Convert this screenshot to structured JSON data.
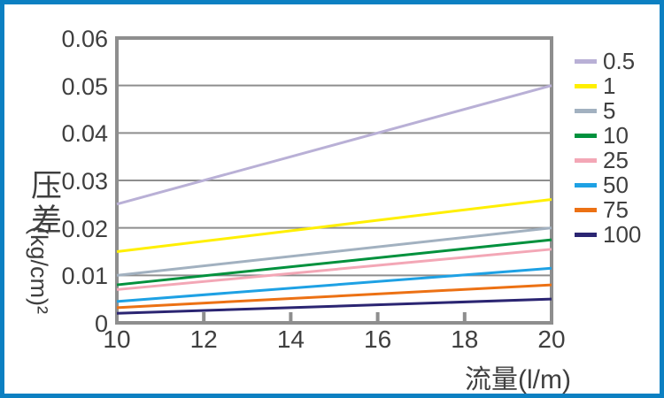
{
  "frame": {
    "border_color": "#0c80c2",
    "background": "#ffffff",
    "axis_color": "#8e8e8e",
    "text_color": "#3f3f3f"
  },
  "chart_data": {
    "type": "line",
    "title": "",
    "xlabel": "流量(l/m)",
    "ylabel": "压差 (kg/cm)²",
    "ylabel_cjk": "压差",
    "ylabel_unit": "(kg/cm)²",
    "xlim": [
      10,
      20
    ],
    "ylim": [
      0,
      0.06
    ],
    "x_ticks": [
      "10",
      "12",
      "14",
      "16",
      "18",
      "20"
    ],
    "y_ticks": [
      "0",
      "0.01",
      "0.02",
      "0.03",
      "0.04",
      "0.05",
      "0.06"
    ],
    "grid": "horizontal",
    "legend_position": "right",
    "x": [
      10,
      20
    ],
    "series": [
      {
        "name": "0.5",
        "color": "#b9b0d6",
        "values": [
          0.025,
          0.05
        ]
      },
      {
        "name": "1",
        "color": "#ffef00",
        "values": [
          0.015,
          0.026
        ]
      },
      {
        "name": "5",
        "color": "#a2b1c0",
        "values": [
          0.01,
          0.02
        ]
      },
      {
        "name": "10",
        "color": "#00913d",
        "values": [
          0.008,
          0.0175
        ]
      },
      {
        "name": "25",
        "color": "#f3a7b6",
        "values": [
          0.007,
          0.0155
        ]
      },
      {
        "name": "50",
        "color": "#1ea1e4",
        "values": [
          0.0045,
          0.0115
        ]
      },
      {
        "name": "75",
        "color": "#ec7114",
        "values": [
          0.0032,
          0.008
        ]
      },
      {
        "name": "100",
        "color": "#2b2572",
        "values": [
          0.002,
          0.005
        ]
      }
    ]
  }
}
